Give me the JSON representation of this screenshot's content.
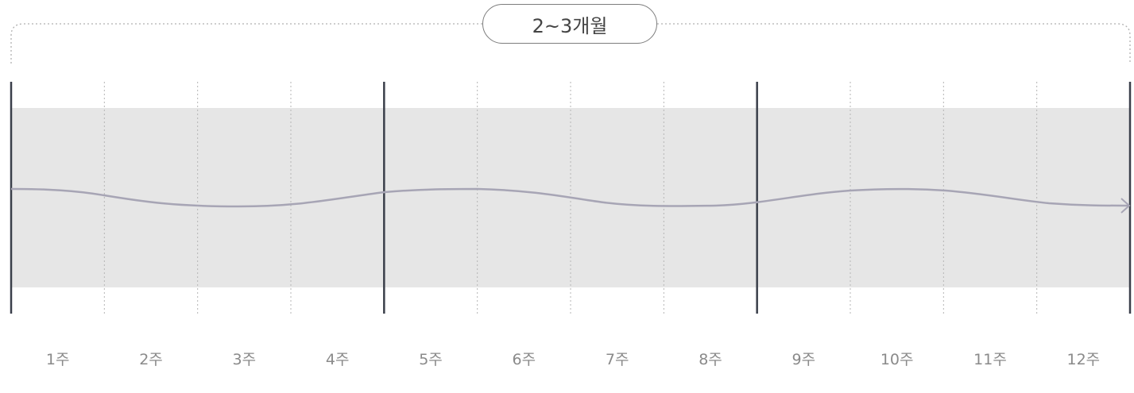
{
  "period_label": "2~3개월",
  "weeks": [
    "1주",
    "2주",
    "3주",
    "4주",
    "5주",
    "6주",
    "7주",
    "8주",
    "9주",
    "10주",
    "11주",
    "12주"
  ],
  "colors": {
    "band": "#e6e6e6",
    "month_divider": "#3a3f4a",
    "week_divider": "#b5b5b5",
    "flow_line": "#a7a5b5",
    "bracket": "#b0b0b0",
    "label": "#8a8a8a"
  }
}
